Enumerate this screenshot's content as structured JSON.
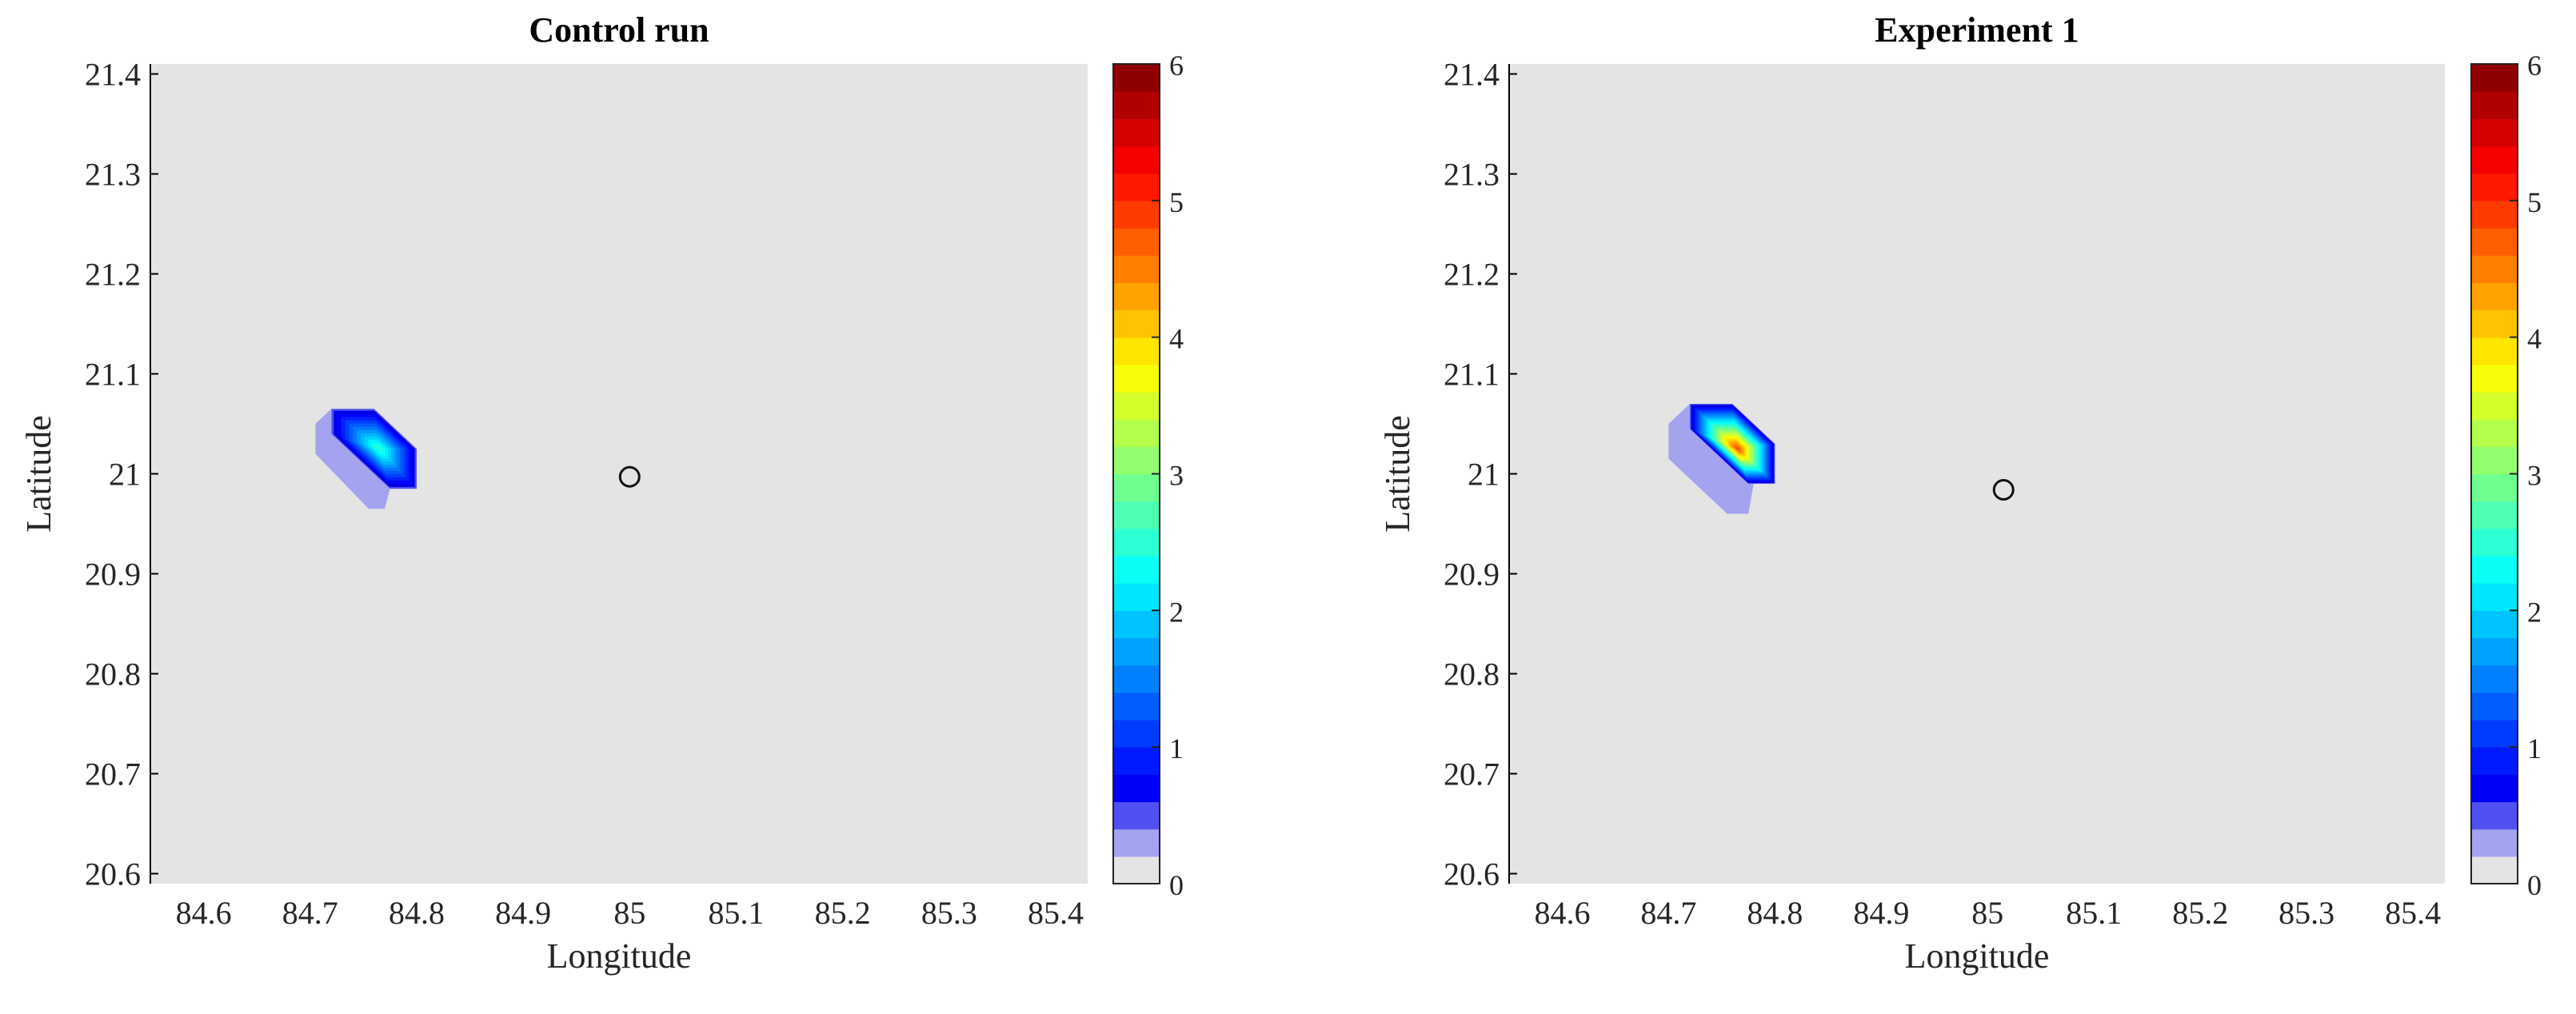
{
  "chart_data": [
    {
      "type": "heatmap",
      "title": "Control run",
      "xlabel": "Longitude",
      "ylabel": "Latitude",
      "xlim": [
        84.55,
        85.43
      ],
      "ylim": [
        20.59,
        21.41
      ],
      "xticks": [
        84.6,
        84.7,
        84.8,
        84.9,
        85,
        85.1,
        85.2,
        85.3,
        85.4
      ],
      "xtick_labels": [
        "84.6",
        "84.7",
        "84.8",
        "84.9",
        "85",
        "85.1",
        "85.2",
        "85.3",
        "85.4"
      ],
      "yticks": [
        20.6,
        20.7,
        20.8,
        20.9,
        21,
        21.1,
        21.2,
        21.3,
        21.4
      ],
      "ytick_labels": [
        "20.6",
        "20.7",
        "20.8",
        "20.9",
        "21",
        "21.1",
        "21.2",
        "21.3",
        "21.4"
      ],
      "background_color": "#e4e4e4",
      "grid": false,
      "colorbar": {
        "limits": [
          0,
          6
        ],
        "ticks": [
          0,
          1,
          2,
          3,
          4,
          5,
          6
        ],
        "tick_labels": [
          "0",
          "1",
          "2",
          "3",
          "4",
          "5",
          "6"
        ],
        "levels": 30,
        "colormap": "jet",
        "low_bin_colors": [
          "#e4e4e4",
          "#a3a3f0",
          "#5050f0"
        ]
      },
      "field": {
        "peak_value": 2.5,
        "peak_lon": 84.765,
        "peak_lat": 21.025,
        "core_polygon": [
          [
            84.72,
            21.065
          ],
          [
            84.76,
            21.065
          ],
          [
            84.8,
            21.025
          ],
          [
            84.8,
            20.985
          ],
          [
            84.775,
            20.985
          ],
          [
            84.72,
            21.04
          ]
        ],
        "fringe_polygon": [
          [
            84.705,
            21.05
          ],
          [
            84.72,
            21.065
          ],
          [
            84.72,
            21.04
          ],
          [
            84.775,
            20.985
          ],
          [
            84.77,
            20.965
          ],
          [
            84.755,
            20.965
          ],
          [
            84.705,
            21.02
          ]
        ]
      },
      "marker": {
        "lon": 85.0,
        "lat": 20.997,
        "shape": "open-circle"
      }
    },
    {
      "type": "heatmap",
      "title": "Experiment 1",
      "xlabel": "Longitude",
      "ylabel": "Latitude",
      "xlim": [
        84.55,
        85.43
      ],
      "ylim": [
        20.59,
        21.41
      ],
      "xticks": [
        84.6,
        84.7,
        84.8,
        84.9,
        85,
        85.1,
        85.2,
        85.3,
        85.4
      ],
      "xtick_labels": [
        "84.6",
        "84.7",
        "84.8",
        "84.9",
        "85",
        "85.1",
        "85.2",
        "85.3",
        "85.4"
      ],
      "yticks": [
        20.6,
        20.7,
        20.8,
        20.9,
        21,
        21.1,
        21.2,
        21.3,
        21.4
      ],
      "ytick_labels": [
        "20.6",
        "20.7",
        "20.8",
        "20.9",
        "21",
        "21.1",
        "21.2",
        "21.3",
        "21.4"
      ],
      "background_color": "#e4e4e4",
      "grid": false,
      "colorbar": {
        "limits": [
          0,
          6
        ],
        "ticks": [
          0,
          1,
          2,
          3,
          4,
          5,
          6
        ],
        "tick_labels": [
          "0",
          "1",
          "2",
          "3",
          "4",
          "5",
          "6"
        ],
        "levels": 30,
        "colormap": "jet",
        "low_bin_colors": [
          "#e4e4e4",
          "#a3a3f0",
          "#5050f0"
        ]
      },
      "field": {
        "peak_value": 4.8,
        "peak_lon": 84.765,
        "peak_lat": 21.025,
        "core_polygon": [
          [
            84.72,
            21.07
          ],
          [
            84.76,
            21.07
          ],
          [
            84.8,
            21.03
          ],
          [
            84.8,
            20.99
          ],
          [
            84.775,
            20.99
          ],
          [
            84.72,
            21.045
          ]
        ],
        "fringe_polygon": [
          [
            84.7,
            21.05
          ],
          [
            84.72,
            21.07
          ],
          [
            84.72,
            21.045
          ],
          [
            84.78,
            20.99
          ],
          [
            84.775,
            20.96
          ],
          [
            84.755,
            20.96
          ],
          [
            84.7,
            21.015
          ]
        ]
      },
      "marker": {
        "lon": 85.015,
        "lat": 20.984,
        "shape": "open-circle"
      }
    }
  ]
}
